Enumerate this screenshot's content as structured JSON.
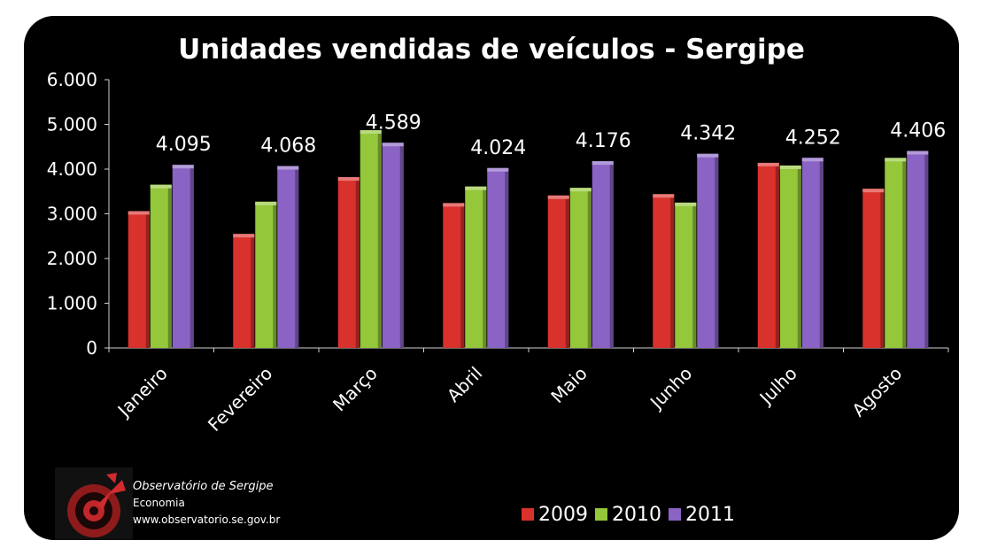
{
  "chart_data": {
    "type": "bar",
    "title": "Unidades vendidas de veículos - Sergipe",
    "categories": [
      "Janeiro",
      "Fevereiro",
      "Março",
      "Abril",
      "Maio",
      "Junho",
      "Julho",
      "Agosto"
    ],
    "series": [
      {
        "name": "2009",
        "color": "#d9312c",
        "values": [
          3060,
          2550,
          3820,
          3240,
          3410,
          3440,
          4140,
          3560
        ]
      },
      {
        "name": "2010",
        "color": "#94c73a",
        "values": [
          3650,
          3270,
          4870,
          3610,
          3580,
          3250,
          4080,
          4250
        ]
      },
      {
        "name": "2011",
        "color": "#8a63c4",
        "values": [
          4095,
          4068,
          4589,
          4024,
          4176,
          4342,
          4252,
          4406
        ]
      }
    ],
    "data_labels": [
      "4.095",
      "4.068",
      "4.589",
      "4.024",
      "4.176",
      "4.342",
      "4.252",
      "4.406"
    ],
    "ylim": [
      0,
      6000
    ],
    "yticks": [
      "6.000",
      "5.000",
      "4.000",
      "3.000",
      "2.000",
      "1.000",
      "0"
    ],
    "ytick_values": [
      6000,
      5000,
      4000,
      3000,
      2000,
      1000,
      0
    ],
    "legend_position": "bottom",
    "grid": false,
    "background": "#000000"
  },
  "footer": {
    "organization": "Observatório de Sergipe",
    "section": "Economia",
    "website": "www.observatorio.se.gov.br"
  }
}
